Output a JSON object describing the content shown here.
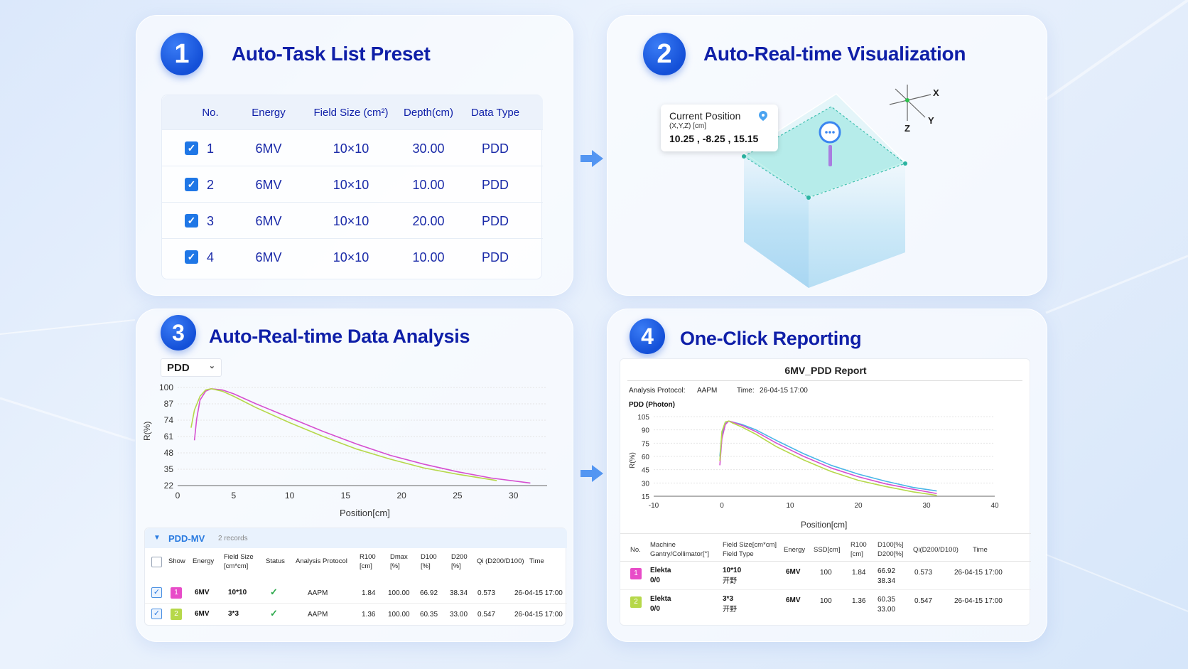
{
  "colors": {
    "accent": "#1450d8",
    "title": "#0f1fa8",
    "magenta": "#d64fd0",
    "lime": "#b6d84a",
    "cyan": "#49b6e8"
  },
  "panel1": {
    "number": "1",
    "title": "Auto-Task List Preset",
    "headers": [
      "No.",
      "Energy",
      "Field Size (cm²)",
      "Depth(cm)",
      "Data Type"
    ],
    "rows": [
      {
        "no": "1",
        "energy": "6MV",
        "field": "10×10",
        "depth": "30.00",
        "type": "PDD",
        "checked": true
      },
      {
        "no": "2",
        "energy": "6MV",
        "field": "10×10",
        "depth": "10.00",
        "type": "PDD",
        "checked": true
      },
      {
        "no": "3",
        "energy": "6MV",
        "field": "10×10",
        "depth": "20.00",
        "type": "PDD",
        "checked": true
      },
      {
        "no": "4",
        "energy": "6MV",
        "field": "10×10",
        "depth": "10.00",
        "type": "PDD",
        "checked": true
      }
    ]
  },
  "panel2": {
    "number": "2",
    "title": "Auto-Real-time Visualization",
    "position_label": "Current Position",
    "position_unit": "(X,Y,Z) [cm]",
    "position_value": "10.25 , -8.25 , 15.15",
    "axes": {
      "x": "X",
      "y": "Y",
      "z": "Z"
    },
    "icon": "location-pin-icon"
  },
  "panel3": {
    "number": "3",
    "title": "Auto-Real-time Data Analysis",
    "select_value": "PDD",
    "section_label": "PDD-MV",
    "records": "2 records",
    "columns": [
      "Show",
      "Energy",
      "Field Size\n[cm*cm]",
      "Status",
      "Analysis Protocol",
      "R100\n[cm]",
      "Dmax\n[%]",
      "D100\n[%]",
      "D200\n[%]",
      "Qi (D200/D100)",
      "Time"
    ],
    "rows": [
      {
        "idx": "1",
        "energy": "6MV",
        "field": "10*10",
        "protocol": "AAPM",
        "r100": "1.84",
        "dmax": "100.00",
        "d100": "66.92",
        "d200": "38.34",
        "qi": "0.573",
        "time": "26-04-15 17:00",
        "color": "#e84cc8"
      },
      {
        "idx": "2",
        "energy": "6MV",
        "field": "3*3",
        "protocol": "AAPM",
        "r100": "1.36",
        "dmax": "100.00",
        "d100": "60.35",
        "d200": "33.00",
        "qi": "0.547",
        "time": "26-04-15 17:00",
        "color": "#b6d84a"
      }
    ]
  },
  "panel4": {
    "number": "4",
    "title": "One-Click Reporting",
    "report_title": "6MV_PDD  Report",
    "protocol_label": "Analysis Protocol:",
    "protocol_value": "AAPM",
    "time_label": "Time:",
    "time_value": "26-04-15 17:00",
    "chart_title": "PDD (Photon)",
    "columns": [
      "No.",
      "Machine\nGantry/Collimator[°]",
      "Field Size[cm*cm]\nField Type",
      "Energy",
      "SSD[cm]",
      "R100\n[cm]",
      "D100[%]\nD200[%]",
      "Qi(D200/D100)",
      "Time"
    ],
    "rows": [
      {
        "idx": "1",
        "machine": "Elekta",
        "angle": "0/0",
        "field": "10*10",
        "ftype": "开野",
        "energy": "6MV",
        "ssd": "100",
        "r100": "1.84",
        "d100": "66.92",
        "d200": "38.34",
        "qi": "0.573",
        "time": "26-04-15 17:00",
        "color": "#e84cc8"
      },
      {
        "idx": "2",
        "machine": "Elekta",
        "angle": "0/0",
        "field": "3*3",
        "ftype": "开野",
        "energy": "6MV",
        "ssd": "100",
        "r100": "1.36",
        "d100": "60.35",
        "d200": "33.00",
        "qi": "0.547",
        "time": "26-04-15 17:00",
        "color": "#b6d84a"
      }
    ]
  },
  "chart_data": [
    {
      "type": "line",
      "title": "",
      "xlabel": "Position[cm]",
      "ylabel": "R(%)",
      "xlim": [
        0,
        33
      ],
      "ylim": [
        22,
        100
      ],
      "xticks": [
        "0",
        "5",
        "10",
        "15",
        "20",
        "25",
        "30"
      ],
      "yticks": [
        "100",
        "87",
        "74",
        "61",
        "48",
        "35",
        "22"
      ],
      "series": [
        {
          "color": "#d64fd0",
          "x": [
            1.5,
            1.7,
            2.0,
            2.5,
            3.0,
            4,
            5,
            7,
            10,
            13,
            16,
            19,
            22,
            25,
            28,
            31.5
          ],
          "y": [
            58,
            75,
            90,
            97,
            99,
            98,
            95,
            87,
            76,
            65,
            55,
            46,
            39,
            33,
            28,
            24
          ]
        },
        {
          "color": "#b6d84a",
          "x": [
            1.2,
            1.5,
            2.0,
            2.5,
            3.0,
            4,
            5,
            7,
            10,
            13,
            16,
            19,
            22,
            25,
            28.5
          ],
          "y": [
            68,
            82,
            93,
            98,
            99,
            97,
            93,
            84,
            72,
            61,
            51,
            43,
            36,
            31,
            26
          ]
        }
      ]
    },
    {
      "type": "line",
      "title": "PDD (Photon)",
      "xlabel": "Position[cm]",
      "ylabel": "R(%)",
      "xlim": [
        -10,
        40
      ],
      "ylim": [
        15,
        105
      ],
      "xticks": [
        "-10",
        "0",
        "10",
        "20",
        "30",
        "40"
      ],
      "yticks": [
        "105",
        "90",
        "75",
        "60",
        "45",
        "30",
        "15"
      ],
      "series": [
        {
          "color": "#49b6e8",
          "x": [
            -0.3,
            0,
            0.5,
            1,
            1.5,
            3,
            5,
            8,
            12,
            16,
            20,
            24,
            28,
            31.5
          ],
          "y": [
            60,
            85,
            97,
            100,
            99,
            96,
            90,
            78,
            63,
            50,
            40,
            32,
            25,
            21
          ]
        },
        {
          "color": "#d64fd0",
          "x": [
            -0.3,
            0,
            0.5,
            1,
            1.5,
            3,
            5,
            8,
            12,
            16,
            20,
            24,
            28,
            31.5
          ],
          "y": [
            50,
            80,
            96,
            100,
            99,
            95,
            88,
            75,
            60,
            47,
            37,
            29,
            23,
            18
          ]
        },
        {
          "color": "#b6d84a",
          "x": [
            -0.3,
            0,
            0.5,
            1,
            1.5,
            3,
            5,
            8,
            12,
            16,
            20,
            24,
            28,
            31.5
          ],
          "y": [
            55,
            88,
            99,
            100,
            98,
            93,
            85,
            71,
            56,
            43,
            33,
            26,
            20,
            16
          ]
        }
      ]
    }
  ]
}
